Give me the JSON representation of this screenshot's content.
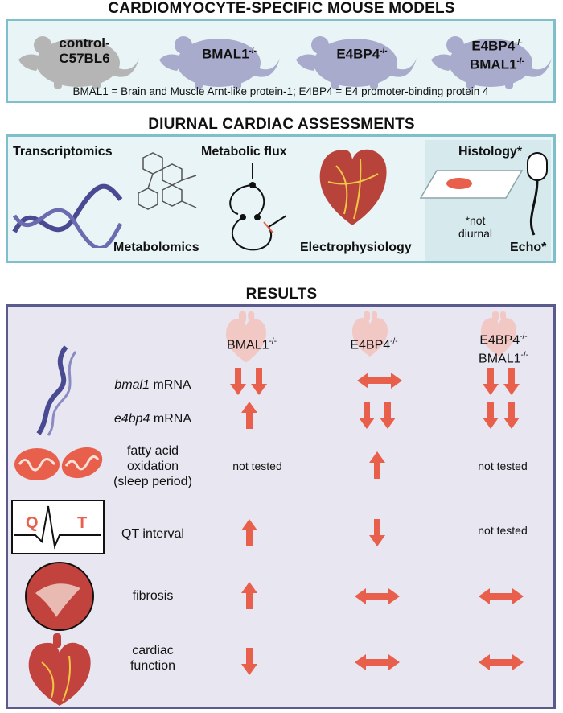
{
  "titles": {
    "models": "CARDIOMYOCYTE-SPECIFIC MOUSE MODELS",
    "assessments": "DIURNAL CARDIAC ASSESSMENTS",
    "results": "RESULTS"
  },
  "models": {
    "m1_line1": "control-",
    "m1_line2": "C57BL6",
    "m2_base": "BMAL1",
    "m3_base": "E4BP4",
    "m4_line1": "E4BP4",
    "m4_line2": "BMAL1",
    "ko_sup": "-/-",
    "footnote": "BMAL1 = Brain and Muscle Arnt-like protein-1; E4BP4 = E4 promoter-binding protein 4"
  },
  "assessments": {
    "transcriptomics": "Transcriptomics",
    "metabolomics": "Metabolomics",
    "metabolic_flux": "Metabolic flux",
    "electrophysiology": "Electrophysiology",
    "histology": "Histology*",
    "echo": "Echo*",
    "note_line1": "*not",
    "note_line2": "diurnal"
  },
  "results": {
    "columns": [
      "BMAL1",
      "E4BP4",
      "E4BP4",
      "BMAL1"
    ],
    "rows": {
      "bmal1_gene": "bmal1",
      "e4bp4_gene": "e4bp4",
      "mrna": " mRNA",
      "fao_l1": "fatty acid",
      "fao_l2": "oxidation",
      "fao_l3": "(sleep period)",
      "qt": "QT interval",
      "fibrosis": "fibrosis",
      "cf_l1": "cardiac",
      "cf_l2": "function"
    },
    "not_tested": "not tested",
    "ecg_q": "Q",
    "ecg_t": "T"
  },
  "chart_data": {
    "type": "table",
    "columns": [
      "BMAL1-/-",
      "E4BP4-/-",
      "E4BP4-/- BMAL1-/-"
    ],
    "rows": [
      {
        "measure": "bmal1 mRNA",
        "values": [
          "double down",
          "no change",
          "double down"
        ]
      },
      {
        "measure": "e4bp4 mRNA",
        "values": [
          "up",
          "double down",
          "double down"
        ]
      },
      {
        "measure": "fatty acid oxidation (sleep period)",
        "values": [
          "not tested",
          "up",
          "not tested"
        ]
      },
      {
        "measure": "QT interval",
        "values": [
          "up",
          "down",
          "not tested"
        ]
      },
      {
        "measure": "fibrosis",
        "values": [
          "up",
          "no change",
          "no change"
        ]
      },
      {
        "measure": "cardiac function",
        "values": [
          "down",
          "no change",
          "no change"
        ]
      }
    ]
  },
  "colors": {
    "arrow": "#e8604c",
    "models_border": "#7fbfca",
    "results_border": "#5b5a8c",
    "mouse": "#a9abcd"
  }
}
